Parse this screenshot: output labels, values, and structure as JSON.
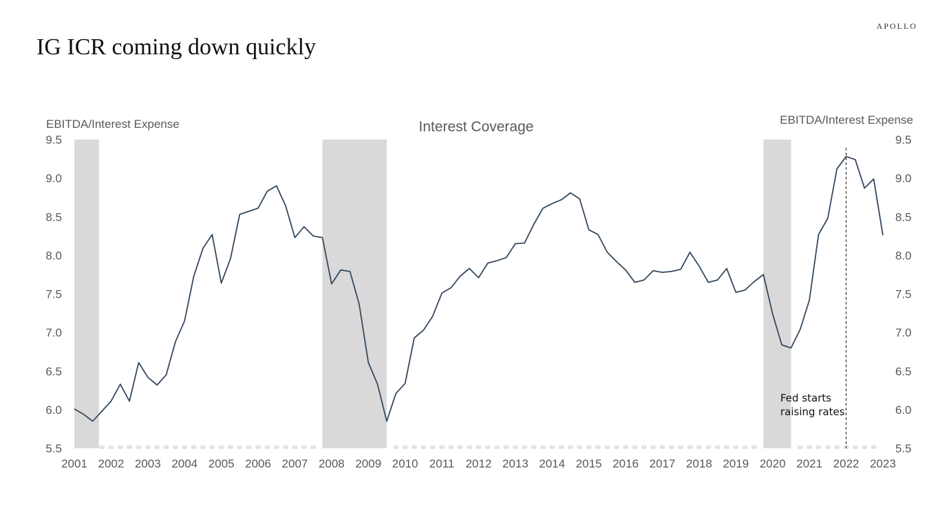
{
  "brand": "APOLLO",
  "page_title": "IG ICR coming down quickly",
  "chart_data": {
    "type": "line",
    "title": "Interest Coverage",
    "ylabel_left": "EBITDA/Interest Expense",
    "ylabel_right": "EBITDA/Interest Expense",
    "ylim": [
      5.5,
      9.5
    ],
    "yticks": [
      "5.5",
      "6.0",
      "6.5",
      "7.0",
      "7.5",
      "8.0",
      "8.5",
      "9.0",
      "9.5"
    ],
    "xlim": [
      2001.0,
      2023.0
    ],
    "xticks": [
      "2001",
      "2002",
      "2003",
      "2004",
      "2005",
      "2006",
      "2007",
      "2008",
      "2009",
      "2010",
      "2011",
      "2012",
      "2013",
      "2014",
      "2015",
      "2016",
      "2017",
      "2018",
      "2019",
      "2020",
      "2021",
      "2022",
      "2023"
    ],
    "grid": false,
    "recessions": [
      [
        2001.0,
        2001.67
      ],
      [
        2007.75,
        2009.5
      ],
      [
        2019.75,
        2020.5
      ]
    ],
    "vline": 2022.0,
    "annotation": [
      "Fed starts",
      "raising rates"
    ],
    "colors": {
      "line": "#34495e",
      "recession": "#d9d9d9",
      "marker": "#e2e2e2"
    },
    "series": [
      {
        "x": [
          2001.0,
          2001.25,
          2001.5,
          2001.75,
          2002.0,
          2002.25,
          2002.5,
          2002.75,
          2003.0,
          2003.25,
          2003.5,
          2003.75,
          2004.0,
          2004.25,
          2004.5,
          2004.75,
          2005.0,
          2005.25,
          2005.5,
          2005.75,
          2006.0,
          2006.25,
          2006.5,
          2006.75,
          2007.0,
          2007.25,
          2007.5,
          2007.75,
          2008.0,
          2008.25,
          2008.5,
          2008.75,
          2009.0,
          2009.25,
          2009.5,
          2009.75,
          2010.0,
          2010.25,
          2010.5,
          2010.75,
          2011.0,
          2011.25,
          2011.5,
          2011.75,
          2012.0,
          2012.25,
          2012.5,
          2012.75,
          2013.0,
          2013.25,
          2013.5,
          2013.75,
          2014.0,
          2014.25,
          2014.5,
          2014.75,
          2015.0,
          2015.25,
          2015.5,
          2015.75,
          2016.0,
          2016.25,
          2016.5,
          2016.75,
          2017.0,
          2017.25,
          2017.5,
          2017.75,
          2018.0,
          2018.25,
          2018.5,
          2018.75,
          2019.0,
          2019.25,
          2019.5,
          2019.75,
          2020.0,
          2020.25,
          2020.5,
          2020.75,
          2021.0,
          2021.25,
          2021.5,
          2021.75,
          2022.0,
          2022.25,
          2022.5,
          2022.75,
          2023.0
        ],
        "values": [
          6.01,
          5.94,
          5.85,
          5.98,
          6.11,
          6.33,
          6.11,
          6.61,
          6.42,
          6.32,
          6.45,
          6.88,
          7.15,
          7.73,
          8.09,
          8.27,
          7.64,
          7.96,
          8.53,
          8.57,
          8.61,
          8.83,
          8.9,
          8.64,
          8.23,
          8.37,
          8.25,
          8.23,
          7.63,
          7.81,
          7.79,
          7.37,
          6.61,
          6.33,
          5.85,
          6.21,
          6.34,
          6.93,
          7.03,
          7.21,
          7.51,
          7.58,
          7.73,
          7.83,
          7.71,
          7.9,
          7.93,
          7.97,
          8.15,
          8.16,
          8.4,
          8.61,
          8.67,
          8.72,
          8.81,
          8.73,
          8.33,
          8.27,
          8.04,
          7.92,
          7.81,
          7.65,
          7.68,
          7.8,
          7.78,
          7.79,
          7.82,
          8.04,
          7.86,
          7.65,
          7.68,
          7.83,
          7.52,
          7.55,
          7.66,
          7.75,
          7.24,
          6.84,
          6.8,
          7.04,
          7.42,
          8.27,
          8.48,
          9.12,
          9.28,
          9.24,
          8.87,
          8.99,
          8.26
        ]
      }
    ]
  }
}
